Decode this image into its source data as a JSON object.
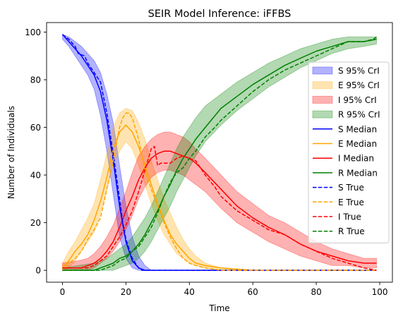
{
  "chart_data": {
    "type": "line",
    "title": "SEIR Model Inference: iFFBS",
    "xlabel": "Time",
    "ylabel": "Number of Individuals",
    "xlim": [
      -5,
      104
    ],
    "ylim": [
      -5,
      104
    ],
    "xticks": [
      0,
      20,
      40,
      60,
      80,
      100
    ],
    "yticks": [
      0,
      20,
      40,
      60,
      80,
      100
    ],
    "grid": false,
    "legend_position": "right",
    "colors": {
      "S": "#0000ff",
      "E": "#ffa500",
      "I": "#ff0000",
      "R": "#008000"
    },
    "bands": [
      {
        "name": "S 95% CrI",
        "color": "#0000ff",
        "x": [
          0,
          2,
          4,
          6,
          8,
          10,
          12,
          14,
          16,
          18,
          20,
          22,
          24,
          26,
          28,
          30,
          99
        ],
        "lower": [
          97,
          94,
          90,
          86,
          82,
          76,
          65,
          50,
          32,
          14,
          5,
          1,
          0,
          0,
          0,
          0,
          0
        ],
        "upper": [
          99,
          98,
          96,
          94,
          91,
          88,
          83,
          74,
          62,
          44,
          27,
          14,
          6,
          2,
          0,
          0,
          0
        ]
      },
      {
        "name": "E 95% CrI",
        "color": "#ffa500",
        "x": [
          0,
          2,
          4,
          6,
          8,
          10,
          12,
          14,
          16,
          18,
          20,
          22,
          24,
          26,
          28,
          30,
          32,
          34,
          36,
          38,
          40,
          42,
          45,
          50,
          55,
          99
        ],
        "lower": [
          0,
          1,
          4,
          8,
          12,
          16,
          24,
          34,
          44,
          50,
          54,
          51,
          44,
          36,
          28,
          21,
          15,
          11,
          7,
          5,
          3,
          2,
          1,
          0,
          0,
          0
        ],
        "upper": [
          3,
          8,
          12,
          17,
          22,
          28,
          38,
          49,
          60,
          66,
          68,
          67,
          62,
          55,
          46,
          38,
          30,
          24,
          18,
          13,
          9,
          6,
          3,
          1,
          0,
          0
        ]
      },
      {
        "name": "I 95% CrI",
        "color": "#ff0000",
        "x": [
          0,
          5,
          8,
          10,
          12,
          14,
          16,
          18,
          20,
          22,
          24,
          26,
          28,
          30,
          32,
          34,
          36,
          38,
          40,
          42,
          45,
          50,
          55,
          60,
          65,
          70,
          75,
          80,
          85,
          90,
          95,
          99
        ],
        "lower": [
          0,
          0,
          0,
          1,
          3,
          5,
          8,
          12,
          17,
          23,
          30,
          35,
          39,
          41,
          42,
          42,
          41,
          40,
          38,
          36,
          33,
          26,
          20,
          16,
          12,
          9,
          6,
          4,
          2,
          2,
          1,
          1
        ],
        "upper": [
          3,
          4,
          5,
          7,
          10,
          14,
          19,
          26,
          33,
          41,
          48,
          52,
          55,
          57,
          58,
          58,
          57,
          56,
          54,
          51,
          47,
          40,
          33,
          28,
          23,
          20,
          16,
          12,
          9,
          7,
          5,
          5
        ]
      },
      {
        "name": "R 95% CrI",
        "color": "#008000",
        "x": [
          0,
          10,
          12,
          14,
          16,
          18,
          20,
          22,
          24,
          26,
          28,
          30,
          32,
          34,
          36,
          38,
          40,
          42,
          45,
          50,
          55,
          60,
          65,
          70,
          75,
          80,
          85,
          90,
          95,
          99
        ],
        "lower": [
          0,
          0,
          0,
          0,
          0,
          1,
          2,
          3,
          5,
          8,
          12,
          17,
          22,
          27,
          33,
          38,
          43,
          48,
          54,
          61,
          67,
          72,
          77,
          81,
          85,
          88,
          91,
          93,
          94,
          95
        ],
        "upper": [
          1,
          3,
          4,
          5,
          7,
          9,
          11,
          14,
          18,
          22,
          27,
          33,
          39,
          45,
          51,
          56,
          60,
          64,
          69,
          74,
          79,
          83,
          87,
          90,
          93,
          95,
          97,
          98,
          98,
          98
        ]
      }
    ],
    "series": [
      {
        "name": "S Median",
        "color": "#0000ff",
        "dash": "solid",
        "x": [
          0,
          2,
          4,
          6,
          8,
          10,
          12,
          14,
          16,
          18,
          20,
          22,
          24,
          26,
          99
        ],
        "y": [
          99,
          96,
          93,
          90,
          86,
          82,
          75,
          63,
          46,
          27,
          12,
          4,
          1,
          0,
          0
        ]
      },
      {
        "name": "E Median",
        "color": "#ffa500",
        "dash": "solid",
        "x": [
          0,
          2,
          4,
          6,
          8,
          10,
          12,
          14,
          16,
          18,
          20,
          22,
          24,
          26,
          28,
          30,
          32,
          34,
          36,
          38,
          40,
          42,
          45,
          50,
          60,
          99
        ],
        "y": [
          1,
          4,
          8,
          11,
          15,
          21,
          29,
          39,
          51,
          58,
          61,
          58,
          52,
          44,
          36,
          28,
          21,
          15,
          11,
          8,
          5,
          3,
          2,
          1,
          0,
          0
        ]
      },
      {
        "name": "I Median",
        "color": "#ff0000",
        "dash": "solid",
        "x": [
          0,
          6,
          8,
          10,
          12,
          14,
          16,
          18,
          20,
          22,
          24,
          26,
          28,
          30,
          32,
          34,
          36,
          38,
          40,
          42,
          45,
          50,
          55,
          60,
          65,
          70,
          75,
          80,
          85,
          90,
          95,
          99
        ],
        "y": [
          1,
          1,
          2,
          3,
          5,
          8,
          12,
          18,
          25,
          31,
          38,
          43,
          47,
          49,
          50,
          50,
          49,
          48,
          47,
          45,
          41,
          34,
          27,
          22,
          18,
          15,
          11,
          8,
          6,
          4,
          3,
          3
        ]
      },
      {
        "name": "R Median",
        "color": "#008000",
        "dash": "solid",
        "x": [
          0,
          10,
          12,
          14,
          16,
          18,
          20,
          22,
          24,
          26,
          28,
          30,
          32,
          34,
          36,
          38,
          40,
          42,
          45,
          50,
          55,
          60,
          65,
          70,
          75,
          80,
          85,
          90,
          95,
          99
        ],
        "y": [
          0,
          0,
          1,
          2,
          3,
          5,
          6,
          8,
          11,
          15,
          20,
          25,
          31,
          36,
          42,
          47,
          51,
          55,
          60,
          68,
          73,
          78,
          82,
          86,
          89,
          92,
          94,
          96,
          96,
          97
        ]
      },
      {
        "name": "S True",
        "color": "#0000ff",
        "dash": "dashed",
        "x": [
          0,
          2,
          4,
          5,
          7,
          8,
          10,
          12,
          14,
          16,
          18,
          19,
          20,
          22,
          24,
          25,
          99
        ],
        "y": [
          99,
          97,
          94,
          91,
          90,
          87,
          83,
          79,
          66,
          49,
          30,
          20,
          13,
          5,
          1,
          0,
          0
        ]
      },
      {
        "name": "E True",
        "color": "#ffa500",
        "dash": "dashed",
        "x": [
          0,
          2,
          4,
          6,
          8,
          10,
          12,
          14,
          16,
          18,
          19,
          20,
          21,
          22,
          24,
          26,
          28,
          30,
          32,
          34,
          36,
          38,
          40,
          42,
          45,
          50,
          99
        ],
        "y": [
          0,
          3,
          5,
          8,
          13,
          17,
          22,
          34,
          46,
          60,
          64,
          66,
          66,
          64,
          55,
          42,
          34,
          27,
          20,
          14,
          9,
          5,
          3,
          2,
          1,
          0,
          0
        ]
      },
      {
        "name": "I True",
        "color": "#ff0000",
        "dash": "dashed",
        "x": [
          0,
          8,
          10,
          12,
          14,
          16,
          18,
          20,
          22,
          24,
          26,
          28,
          29,
          30,
          31,
          32,
          34,
          36,
          38,
          40,
          42,
          45,
          48,
          50,
          55,
          60,
          65,
          70,
          75,
          80,
          85,
          90,
          95,
          99
        ],
        "y": [
          1,
          1,
          2,
          4,
          6,
          10,
          14,
          19,
          25,
          33,
          42,
          51,
          52,
          44,
          45,
          45,
          45,
          47,
          48,
          47,
          46,
          40,
          35,
          31,
          25,
          21,
          17,
          15,
          11,
          8,
          5,
          3,
          1,
          0
        ]
      },
      {
        "name": "R True",
        "color": "#008000",
        "dash": "dashed",
        "x": [
          0,
          12,
          14,
          16,
          18,
          20,
          22,
          24,
          26,
          28,
          30,
          32,
          34,
          36,
          38,
          40,
          42,
          45,
          48,
          50,
          55,
          60,
          65,
          70,
          75,
          80,
          85,
          90,
          95,
          98,
          99
        ],
        "y": [
          0,
          0,
          1,
          2,
          4,
          5,
          8,
          10,
          14,
          18,
          24,
          31,
          37,
          41,
          43,
          47,
          50,
          56,
          60,
          63,
          69,
          75,
          80,
          84,
          87,
          90,
          93,
          96,
          96,
          97,
          98
        ]
      }
    ],
    "legend": [
      "S 95% CrI",
      "E 95% CrI",
      "I 95% CrI",
      "R 95% CrI",
      "S Median",
      "E Median",
      "I Median",
      "R Median",
      "S True",
      "E True",
      "I True",
      "R True"
    ]
  }
}
